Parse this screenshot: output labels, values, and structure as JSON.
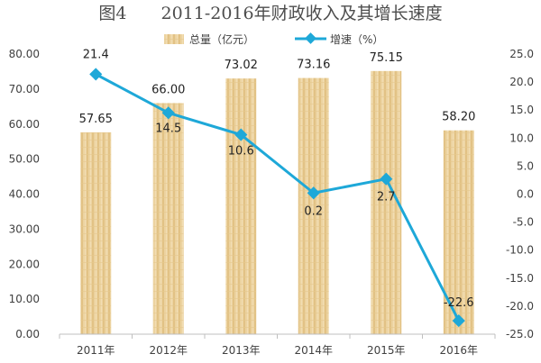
{
  "chart_data": {
    "type": "bar+line",
    "title": "图4　　2011-2016年财政收入及其增长速度",
    "categories": [
      "2011年",
      "2012年",
      "2013年",
      "2014年",
      "2015年",
      "2016年"
    ],
    "series": [
      {
        "name": "总量（亿元）",
        "type": "bar",
        "axis": "left",
        "values": [
          57.65,
          66.0,
          73.02,
          73.16,
          75.15,
          58.2
        ],
        "labels": [
          "57.65",
          "66.00",
          "73.02",
          "73.16",
          "75.15",
          "58.20"
        ],
        "color": "#e6c88e"
      },
      {
        "name": "增速（%）",
        "type": "line",
        "axis": "right",
        "values": [
          21.4,
          14.5,
          10.6,
          0.2,
          2.7,
          -22.6
        ],
        "labels": [
          "21.4",
          "14.5",
          "10.6",
          "0.2",
          "2.7",
          "-22.6"
        ],
        "color": "#1ea8d8"
      }
    ],
    "left_axis": {
      "min": 0,
      "max": 80,
      "step": 10,
      "tick_labels": [
        "0.00",
        "10.00",
        "20.00",
        "30.00",
        "40.00",
        "50.00",
        "60.00",
        "70.00",
        "80.00"
      ]
    },
    "right_axis": {
      "min": -25,
      "max": 25,
      "step": 5,
      "tick_labels": [
        "-25.0",
        "-20.0",
        "-15.0",
        "-10.0",
        "-5.0",
        "0.0",
        "5.0",
        "10.0",
        "15.0",
        "20.0",
        "25.0"
      ]
    },
    "legend_position": "top-center",
    "grid": false
  }
}
